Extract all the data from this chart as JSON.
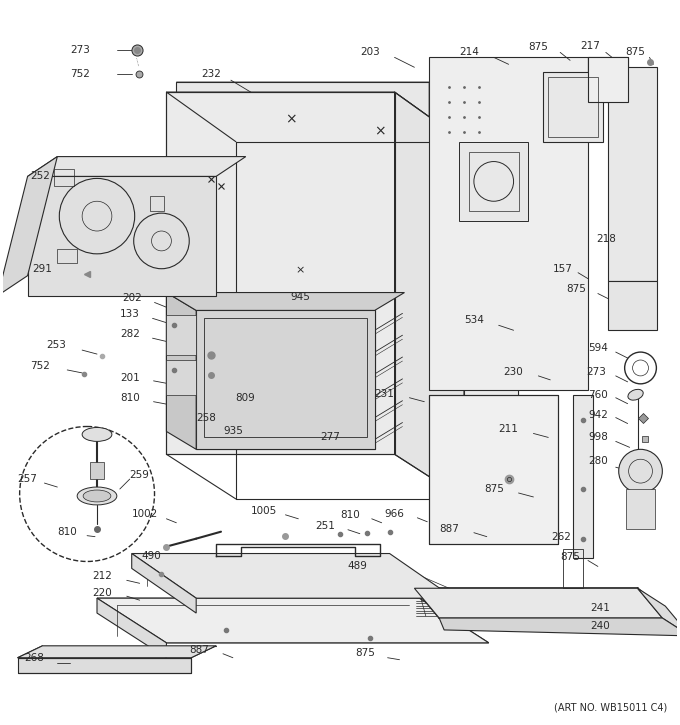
{
  "art_no": "(ART NO. WB15011 C4)",
  "bg": "#ffffff",
  "lc": "#2a2a2a",
  "fig_w": 6.8,
  "fig_h": 7.25,
  "dpi": 100
}
